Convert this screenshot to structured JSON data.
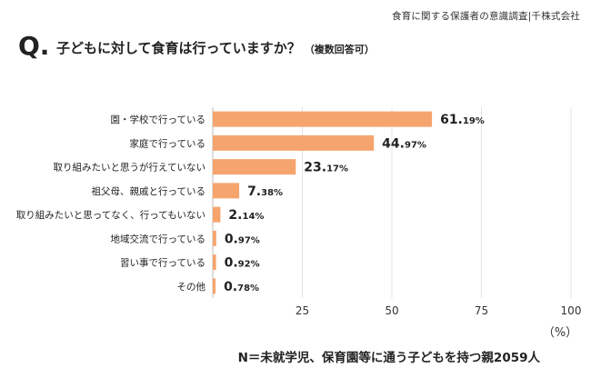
{
  "source": "食育に関する保護者の意識調査|千株式会社",
  "question": {
    "mark": "Q.",
    "text": "子どもに対して食育は行っていますか？",
    "note": "（複数回答可）"
  },
  "footnote": "N＝未就学児、保育園等に通う子どもを持つ親2059人",
  "colors": {
    "bar": "#F6A46E",
    "grid": "#E3E3E3",
    "axis": "#BDBDBD"
  },
  "chart_data": {
    "type": "bar",
    "orientation": "horizontal",
    "categories": [
      "園・学校で行っている",
      "家庭で行っている",
      "取り組みたいと思うが行えていない",
      "祖父母、親戚と行っている",
      "取り組みたいと思ってなく、行ってもいない",
      "地域交流で行っている",
      "習い事で行っている",
      "その他"
    ],
    "values": [
      61.19,
      44.97,
      23.17,
      7.38,
      2.14,
      0.97,
      0.92,
      0.78
    ],
    "value_labels": [
      {
        "int": "61.",
        "dec": "19%"
      },
      {
        "int": "44.",
        "dec": "97%"
      },
      {
        "int": "23.",
        "dec": "17%"
      },
      {
        "int": "7.",
        "dec": "38%"
      },
      {
        "int": "2.",
        "dec": "14%"
      },
      {
        "int": "0.",
        "dec": "97%"
      },
      {
        "int": "0.",
        "dec": "92%"
      },
      {
        "int": "0.",
        "dec": "78%"
      }
    ],
    "xlim": [
      0,
      100
    ],
    "xticks": [
      "25",
      "50",
      "75",
      "100"
    ],
    "xtick_values": [
      25,
      50,
      75,
      100
    ],
    "xlabel": "（%）",
    "grid": true
  }
}
